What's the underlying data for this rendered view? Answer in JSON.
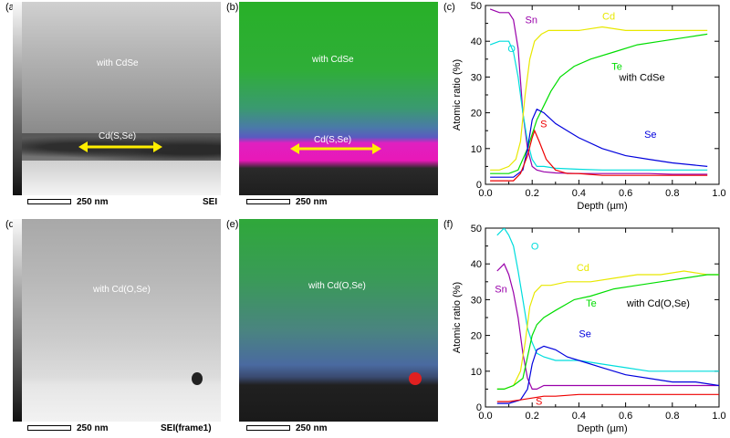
{
  "panels": {
    "a": {
      "label": "(a)",
      "region_label": "with CdSe",
      "interface_label": "Cd(S,Se)",
      "scale_label": "250  nm",
      "mode": "SEI"
    },
    "b": {
      "label": "(b)",
      "region_label": "with CdSe",
      "interface_label": "Cd(S,Se)",
      "scale_label": "250  nm"
    },
    "c": {
      "label": "(c)"
    },
    "d": {
      "label": "(d)",
      "region_label": "with Cd(O,Se)",
      "scale_label": "250  nm",
      "mode": "SEI(frame1)"
    },
    "e": {
      "label": "(e)",
      "region_label": "with Cd(O,Se)",
      "scale_label": "250  nm"
    },
    "f": {
      "label": "(f)"
    }
  },
  "chart_data": [
    {
      "type": "line",
      "panel": "c",
      "xlabel": "Depth (µm)",
      "ylabel": "Atomic ratio (%)",
      "xlim": [
        0.0,
        1.0
      ],
      "ylim": [
        0,
        50
      ],
      "xticks": [
        0.0,
        0.2,
        0.4,
        0.6,
        0.8,
        1.0
      ],
      "xtick_labels": [
        "0.0",
        "0.2",
        "0.4",
        "0.6",
        "0.8",
        "1.0"
      ],
      "yticks": [
        0,
        10,
        20,
        30,
        40,
        50
      ],
      "annotation": "with CdSe",
      "series": [
        {
          "name": "Sn",
          "color": "#9900aa",
          "x": [
            0.02,
            0.06,
            0.1,
            0.12,
            0.14,
            0.16,
            0.18,
            0.2,
            0.22,
            0.25,
            0.3,
            0.4,
            0.5,
            0.6,
            0.7,
            0.8,
            0.95
          ],
          "y": [
            49,
            48,
            48,
            46,
            38,
            20,
            10,
            5,
            4,
            3.5,
            3.2,
            3,
            3,
            3,
            3,
            2.8,
            2.8
          ]
        },
        {
          "name": "O",
          "color": "#00dddd",
          "x": [
            0.02,
            0.06,
            0.1,
            0.12,
            0.14,
            0.16,
            0.18,
            0.2,
            0.22,
            0.25,
            0.3,
            0.4,
            0.5,
            0.6,
            0.7,
            0.8,
            0.95
          ],
          "y": [
            39,
            40,
            40,
            37,
            30,
            20,
            12,
            7,
            5,
            5,
            4.5,
            4.2,
            4,
            4,
            4,
            4,
            4
          ]
        },
        {
          "name": "Cd",
          "color": "#e8e800",
          "x": [
            0.02,
            0.06,
            0.1,
            0.13,
            0.15,
            0.17,
            0.19,
            0.21,
            0.24,
            0.27,
            0.3,
            0.4,
            0.5,
            0.6,
            0.7,
            0.8,
            0.9,
            0.95
          ],
          "y": [
            4,
            4,
            5,
            7,
            12,
            25,
            35,
            40,
            42,
            43,
            43,
            43,
            44,
            43,
            43,
            43,
            43,
            43
          ]
        },
        {
          "name": "Te",
          "color": "#00dd00",
          "x": [
            0.02,
            0.06,
            0.1,
            0.14,
            0.18,
            0.22,
            0.25,
            0.28,
            0.32,
            0.38,
            0.45,
            0.55,
            0.65,
            0.75,
            0.85,
            0.95
          ],
          "y": [
            3,
            3,
            3,
            4,
            10,
            18,
            22,
            26,
            30,
            33,
            35,
            37,
            39,
            40,
            41,
            42
          ]
        },
        {
          "name": "Se",
          "color": "#0000dd",
          "x": [
            0.02,
            0.08,
            0.12,
            0.16,
            0.18,
            0.2,
            0.22,
            0.25,
            0.3,
            0.35,
            0.4,
            0.5,
            0.6,
            0.7,
            0.8,
            0.95
          ],
          "y": [
            2,
            2,
            2,
            4,
            10,
            18,
            21,
            20,
            17,
            15,
            13,
            10,
            8,
            7,
            6,
            5
          ]
        },
        {
          "name": "S",
          "color": "#ee0000",
          "x": [
            0.02,
            0.08,
            0.12,
            0.15,
            0.18,
            0.2,
            0.21,
            0.23,
            0.26,
            0.3,
            0.35,
            0.4,
            0.5,
            0.6,
            0.8,
            0.95
          ],
          "y": [
            1,
            1,
            1,
            3,
            8,
            13,
            15,
            12,
            7,
            4,
            3,
            3,
            2.5,
            2.5,
            2.5,
            2.5
          ]
        }
      ]
    },
    {
      "type": "line",
      "panel": "f",
      "xlabel": "Depth (µm)",
      "ylabel": "Atomic ratio (%)",
      "xlim": [
        0.0,
        1.0
      ],
      "ylim": [
        0,
        50
      ],
      "xticks": [
        0.0,
        0.2,
        0.4,
        0.6,
        0.8,
        1.0
      ],
      "xtick_labels": [
        "0.0",
        "0.2",
        "0.4",
        "0.6",
        "0.8",
        "1.0"
      ],
      "yticks": [
        0,
        10,
        20,
        30,
        40,
        50
      ],
      "annotation": "with Cd(O,Se)",
      "series": [
        {
          "name": "O",
          "color": "#00dddd",
          "x": [
            0.05,
            0.08,
            0.1,
            0.12,
            0.14,
            0.16,
            0.18,
            0.2,
            0.22,
            0.25,
            0.3,
            0.4,
            0.5,
            0.6,
            0.7,
            0.8,
            0.9,
            1.0
          ],
          "y": [
            48,
            50,
            48,
            45,
            38,
            30,
            22,
            18,
            15,
            14,
            13,
            13,
            12,
            11,
            10,
            10,
            10,
            10
          ]
        },
        {
          "name": "Sn",
          "color": "#9900aa",
          "x": [
            0.05,
            0.08,
            0.1,
            0.12,
            0.14,
            0.16,
            0.18,
            0.2,
            0.22,
            0.25,
            0.3,
            0.4,
            0.5,
            0.6,
            0.7,
            0.8,
            0.9,
            1.0
          ],
          "y": [
            38,
            40,
            37,
            32,
            25,
            15,
            8,
            5,
            5,
            6,
            6,
            6,
            6,
            6,
            6,
            6,
            6,
            6
          ]
        },
        {
          "name": "Cd",
          "color": "#e8e800",
          "x": [
            0.05,
            0.08,
            0.12,
            0.15,
            0.17,
            0.19,
            0.21,
            0.24,
            0.28,
            0.35,
            0.45,
            0.55,
            0.65,
            0.75,
            0.85,
            0.95,
            1.0
          ],
          "y": [
            5,
            5,
            6,
            10,
            18,
            28,
            32,
            34,
            34,
            35,
            35,
            36,
            37,
            37,
            38,
            37,
            37
          ]
        },
        {
          "name": "Te",
          "color": "#00dd00",
          "x": [
            0.05,
            0.08,
            0.12,
            0.16,
            0.18,
            0.2,
            0.22,
            0.25,
            0.3,
            0.38,
            0.45,
            0.55,
            0.65,
            0.75,
            0.85,
            0.95,
            1.0
          ],
          "y": [
            5,
            5,
            6,
            8,
            14,
            20,
            23,
            25,
            27,
            30,
            31,
            33,
            34,
            35,
            36,
            37,
            37
          ]
        },
        {
          "name": "Se",
          "color": "#0000dd",
          "x": [
            0.05,
            0.1,
            0.15,
            0.18,
            0.2,
            0.22,
            0.25,
            0.3,
            0.35,
            0.4,
            0.5,
            0.6,
            0.7,
            0.8,
            0.9,
            1.0
          ],
          "y": [
            1,
            1,
            2,
            5,
            12,
            16,
            17,
            16,
            14,
            13,
            11,
            9,
            8,
            7,
            7,
            6
          ]
        },
        {
          "name": "S",
          "color": "#ee0000",
          "x": [
            0.05,
            0.1,
            0.15,
            0.2,
            0.25,
            0.3,
            0.4,
            0.5,
            0.6,
            0.7,
            0.8,
            0.9,
            1.0
          ],
          "y": [
            1.5,
            1.5,
            2,
            2.5,
            3,
            3,
            3.5,
            3.5,
            3.5,
            3.5,
            3.5,
            3.5,
            3.5
          ]
        }
      ]
    }
  ]
}
